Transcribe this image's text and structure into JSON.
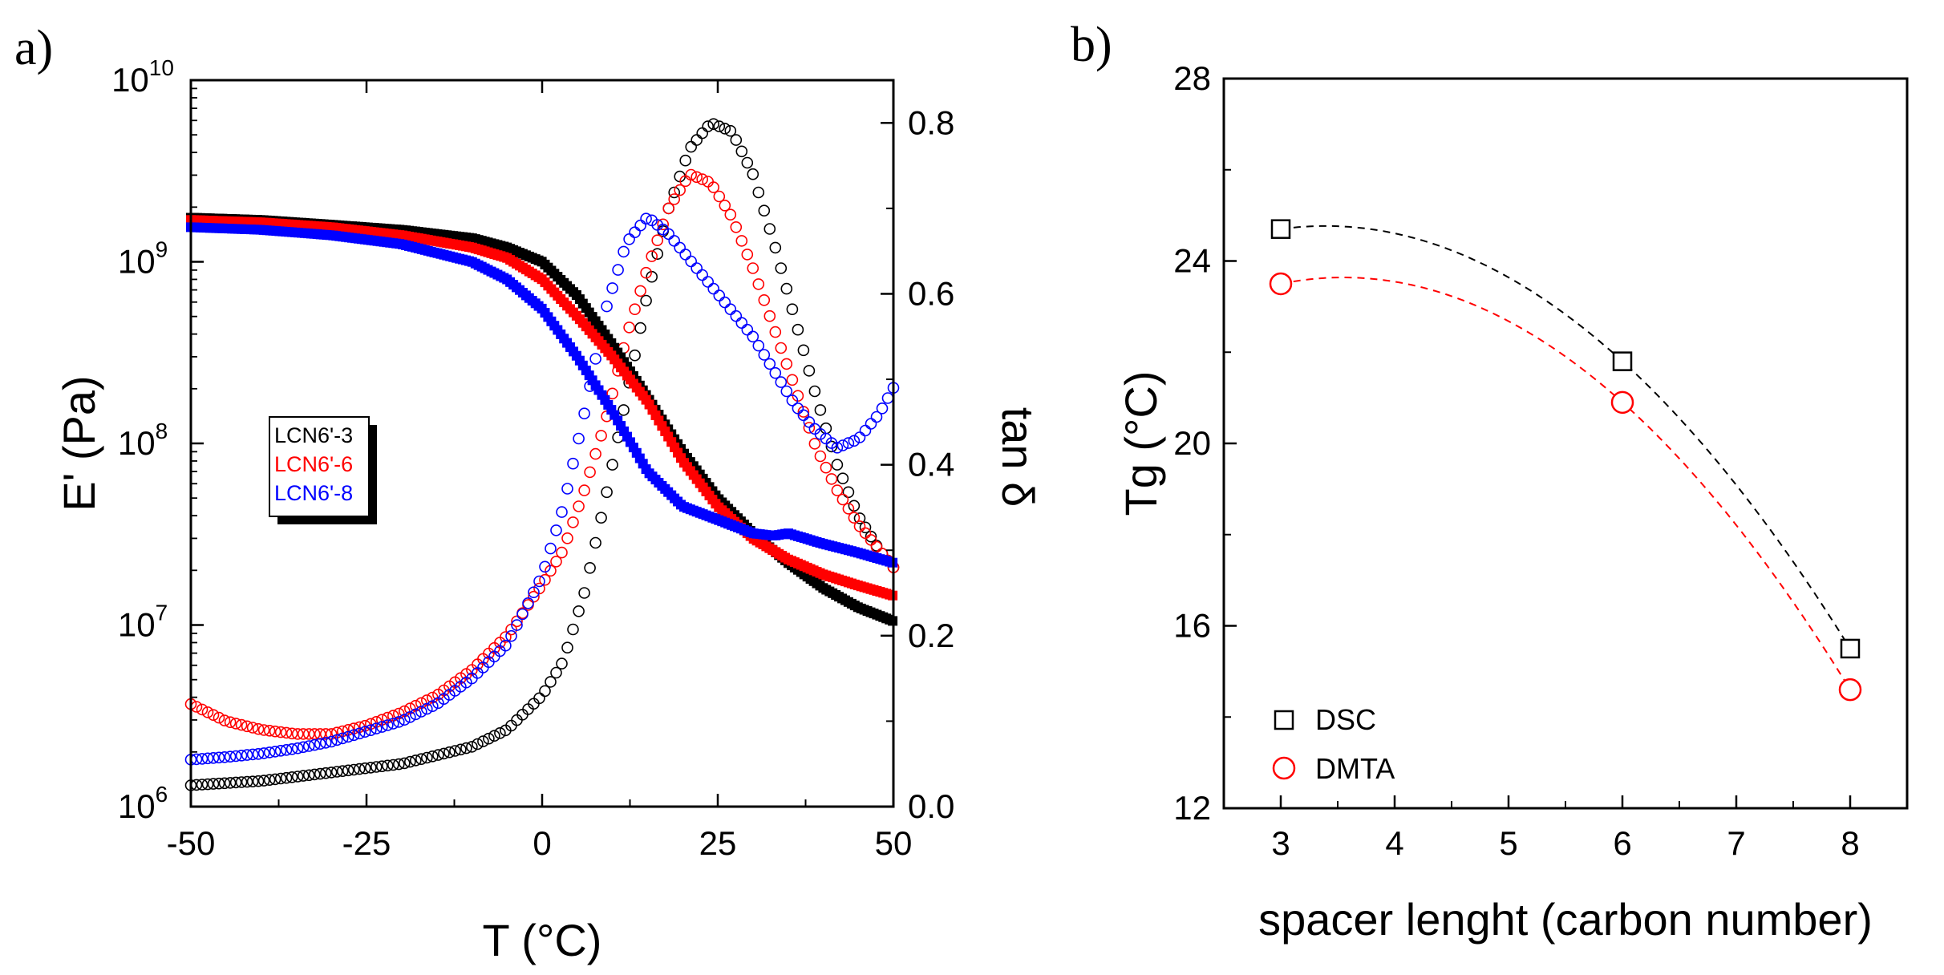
{
  "chart_data": [
    {
      "panel_label": "a)",
      "type": "scatter",
      "xlabel": "T (°C)",
      "ylabel": "E' (Pa)",
      "y2label": "tan δ",
      "xlim": [
        -50,
        50
      ],
      "ylim": [
        1000000,
        10000000000
      ],
      "yscale": "log",
      "y2lim": [
        0.0,
        0.85
      ],
      "x_ticks": [
        "-50",
        "-25",
        "0",
        "25",
        "50"
      ],
      "y_ticks": [
        {
          "base": "10",
          "exp": "6"
        },
        {
          "base": "10",
          "exp": "7"
        },
        {
          "base": "10",
          "exp": "8"
        },
        {
          "base": "10",
          "exp": "9"
        },
        {
          "base": "10",
          "exp": "10"
        }
      ],
      "y2_ticks": [
        "0.0",
        "0.2",
        "0.4",
        "0.6",
        "0.8"
      ],
      "legend": {
        "placement": "center-left",
        "entries": [
          {
            "label": "LCN6'-3",
            "color": "#000000"
          },
          {
            "label": "LCN6'-6",
            "color": "#ff0000"
          },
          {
            "label": "LCN6'-8",
            "color": "#0000ff"
          }
        ]
      },
      "series": [
        {
          "name": "LCN6'-3",
          "color": "#000000",
          "storage_modulus": {
            "x": [
              -50,
              -40,
              -30,
              -20,
              -10,
              -5,
              0,
              5,
              10,
              15,
              20,
              25,
              30,
              35,
              40,
              45,
              50
            ],
            "y": [
              1750000000.0,
              1700000000.0,
              1600000000.0,
              1500000000.0,
              1350000000.0,
              1200000000.0,
              1000000000.0,
              650000000.0,
              350000000.0,
              180000000.0,
              90000000.0,
              50000000.0,
              32000000.0,
              22000000.0,
              16000000.0,
              12500000.0,
              10500000.0
            ]
          },
          "tan_delta": {
            "x": [
              -50,
              -40,
              -30,
              -20,
              -10,
              -5,
              0,
              3,
              6,
              9,
              12,
              15,
              18,
              21,
              24,
              27,
              30,
              33,
              36,
              39,
              42,
              45,
              48,
              50
            ],
            "y": [
              0.025,
              0.03,
              0.04,
              0.05,
              0.07,
              0.09,
              0.13,
              0.17,
              0.25,
              0.36,
              0.48,
              0.6,
              0.7,
              0.77,
              0.8,
              0.79,
              0.74,
              0.66,
              0.57,
              0.48,
              0.4,
              0.34,
              0.3,
              0.28
            ]
          }
        },
        {
          "name": "LCN6'-6",
          "color": "#ff0000",
          "storage_modulus": {
            "x": [
              -50,
              -40,
              -30,
              -20,
              -10,
              -5,
              0,
              5,
              10,
              15,
              20,
              25,
              30,
              35,
              40,
              45,
              50
            ],
            "y": [
              1700000000.0,
              1650000000.0,
              1550000000.0,
              1400000000.0,
              1200000000.0,
              1050000000.0,
              800000000.0,
              500000000.0,
              300000000.0,
              170000000.0,
              80000000.0,
              45000000.0,
              30000000.0,
              23000000.0,
              19000000.0,
              16500000.0,
              14500000.0
            ]
          },
          "tan_delta": {
            "x": [
              -50,
              -45,
              -40,
              -35,
              -30,
              -25,
              -20,
              -15,
              -10,
              -5,
              0,
              3,
              6,
              9,
              12,
              15,
              18,
              21,
              24,
              27,
              30,
              33,
              36,
              39,
              42,
              45,
              48,
              50
            ],
            "y": [
              0.12,
              0.1,
              0.09,
              0.085,
              0.085,
              0.095,
              0.11,
              0.13,
              0.16,
              0.2,
              0.26,
              0.3,
              0.37,
              0.45,
              0.55,
              0.63,
              0.7,
              0.74,
              0.73,
              0.69,
              0.63,
              0.56,
              0.49,
              0.42,
              0.37,
              0.33,
              0.3,
              0.28
            ]
          }
        },
        {
          "name": "LCN6'-8",
          "color": "#0000ff",
          "storage_modulus": {
            "x": [
              -50,
              -40,
              -30,
              -20,
              -10,
              -5,
              0,
              5,
              10,
              15,
              20,
              25,
              30,
              33,
              35,
              40,
              45,
              50
            ],
            "y": [
              1550000000.0,
              1500000000.0,
              1400000000.0,
              1250000000.0,
              1000000000.0,
              800000000.0,
              550000000.0,
              300000000.0,
              150000000.0,
              70000000.0,
              45000000.0,
              38000000.0,
              32000000.0,
              31000000.0,
              32000000.0,
              28000000.0,
              25000000.0,
              22000000.0
            ]
          },
          "tan_delta": {
            "x": [
              -50,
              -45,
              -40,
              -35,
              -30,
              -25,
              -20,
              -15,
              -10,
              -5,
              0,
              3,
              6,
              9,
              12,
              15,
              18,
              21,
              24,
              27,
              30,
              33,
              36,
              39,
              42,
              45,
              48,
              50
            ],
            "y": [
              0.055,
              0.058,
              0.062,
              0.068,
              0.076,
              0.088,
              0.1,
              0.12,
              0.15,
              0.19,
              0.27,
              0.35,
              0.46,
              0.58,
              0.66,
              0.69,
              0.67,
              0.64,
              0.61,
              0.58,
              0.55,
              0.51,
              0.47,
              0.44,
              0.42,
              0.43,
              0.46,
              0.49
            ]
          }
        }
      ]
    },
    {
      "panel_label": "b)",
      "type": "scatter",
      "xlabel": "spacer lenght (carbon number)",
      "ylabel": "Tg (°C)",
      "xlim": [
        2.5,
        8.5
      ],
      "ylim": [
        12,
        28
      ],
      "x_ticks": [
        "3",
        "4",
        "5",
        "6",
        "7",
        "8"
      ],
      "y_ticks": [
        "12",
        "16",
        "20",
        "24",
        "28"
      ],
      "legend": {
        "placement": "bottom-left",
        "entries": [
          {
            "label": "DSC",
            "marker": "square",
            "color": "#000000"
          },
          {
            "label": "DMTA",
            "marker": "circle",
            "color": "#ff0000"
          }
        ]
      },
      "series": [
        {
          "name": "DSC",
          "marker": "square",
          "color": "#000000",
          "x": [
            3,
            6,
            8
          ],
          "y": [
            24.7,
            21.8,
            15.5
          ],
          "fit": {
            "style": "dashed"
          }
        },
        {
          "name": "DMTA",
          "marker": "circle",
          "color": "#ff0000",
          "x": [
            3,
            6,
            8
          ],
          "y": [
            23.5,
            20.9,
            14.6
          ],
          "fit": {
            "style": "dashed"
          }
        }
      ]
    }
  ]
}
